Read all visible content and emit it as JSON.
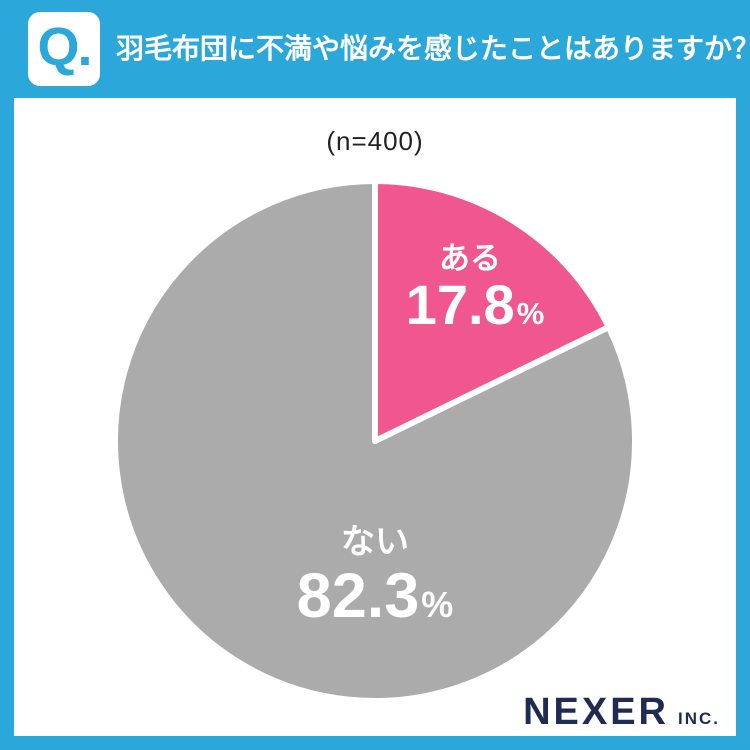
{
  "header": {
    "q_label": "Q.",
    "question": "羽毛布団に不満や悩みを感じたことはありますか？"
  },
  "chart_data": {
    "type": "pie",
    "sample_size_label": "(n=400)",
    "direction": "clockwise",
    "start_angle_deg": 0,
    "legend_position": "inside",
    "slices": [
      {
        "label": "ある",
        "value": 17.8,
        "display_value": "17.8",
        "unit": "%",
        "color": "#F0578F"
      },
      {
        "label": "ない",
        "value": 82.3,
        "display_value": "82.3",
        "unit": "%",
        "color": "#ABABAB"
      }
    ]
  },
  "footer": {
    "brand": "NEXER",
    "brand_suffix": "INC."
  },
  "colors": {
    "frame": "#2BA8D9",
    "background": "#FFFFFF",
    "q_badge_bg": "#FFFFFF",
    "q_badge_text": "#2BA8D9",
    "question_text": "#FFFFFF",
    "sample_text": "#222222",
    "slice_label_text": "#FFFFFF",
    "slice_divider": "#FFFFFF",
    "brand_text": "#1F2B52"
  }
}
